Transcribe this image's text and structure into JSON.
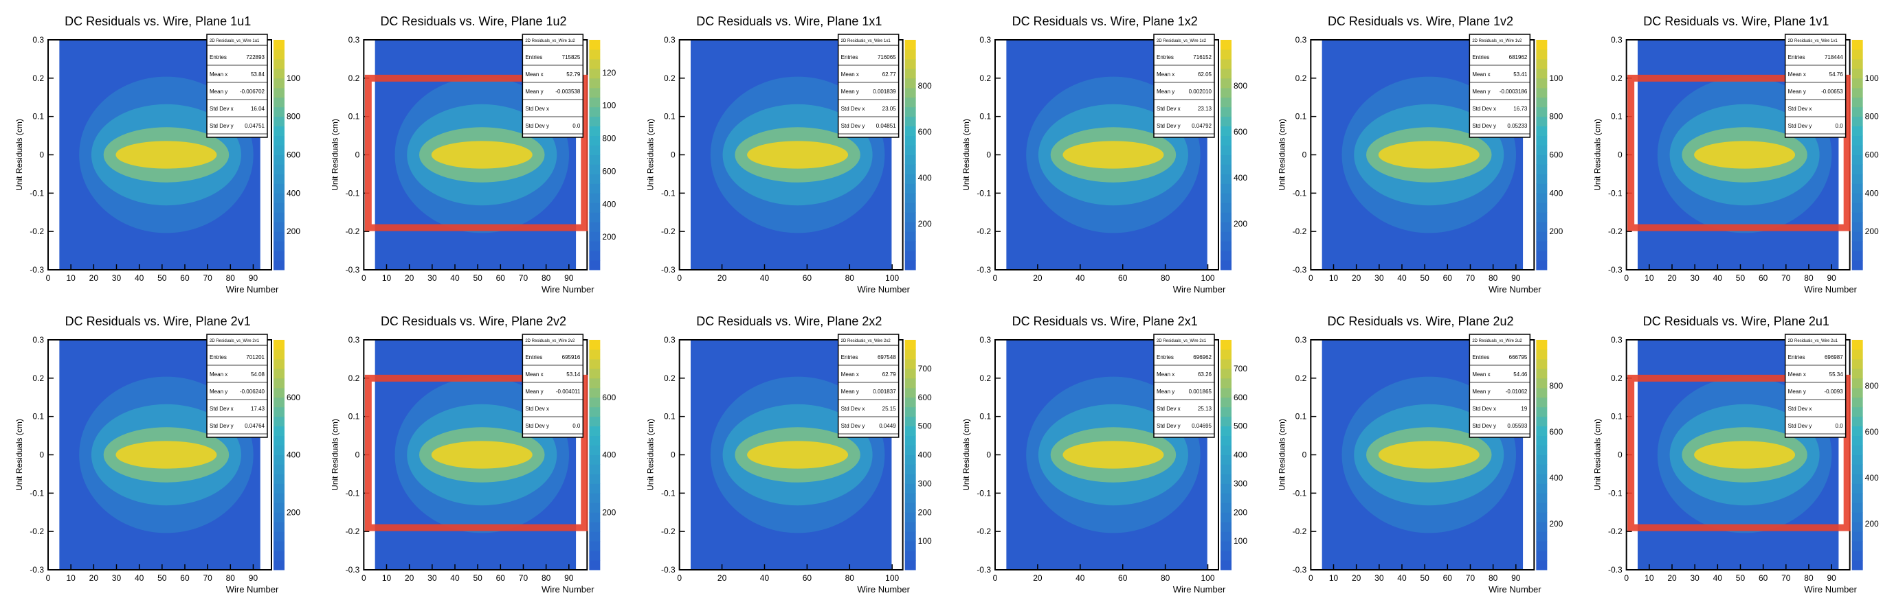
{
  "canvas": {
    "ylabel": "Unit Residuals (cm)",
    "xlabel": "Wire Number",
    "stats_labels": [
      "Entries",
      "Mean x",
      "Mean y",
      "Std Dev x",
      "Std Dev y"
    ]
  },
  "colors": {
    "background": "#ffffff",
    "frame": "#000000",
    "heat_low": "#2a5ccd",
    "heat_mid": "#33b3c7",
    "heat_high": "#f5d31d",
    "overlay": "#e8412c"
  },
  "chart_data": [
    {
      "type": "heatmap",
      "title": "DC Residuals vs. Wire, Plane 1u1",
      "stats_title": "2D Residuals_vs_Wire 1u1",
      "xlabel": "Wire Number",
      "ylabel": "Unit Residuals (cm)",
      "xlim": [
        0,
        98
      ],
      "ylim": [
        -0.3,
        0.3
      ],
      "xticks": [
        0,
        10,
        20,
        30,
        40,
        50,
        60,
        70,
        80,
        90
      ],
      "yticks": [
        -0.3,
        -0.2,
        -0.1,
        0,
        0.1,
        0.2,
        0.3
      ],
      "zticks": [
        "200",
        "400",
        "600",
        "800",
        "100"
      ],
      "stats": [
        "722893",
        "53.84",
        "-0.006702",
        "16.04",
        "0.04751"
      ],
      "overlay": false
    },
    {
      "type": "heatmap",
      "title": "DC Residuals vs. Wire, Plane 1u2",
      "stats_title": "2D Residuals_vs_Wire 1u2",
      "xlabel": "Wire Number",
      "ylabel": "Unit Residuals (cm)",
      "xlim": [
        0,
        98
      ],
      "ylim": [
        -0.3,
        0.3
      ],
      "xticks": [
        0,
        10,
        20,
        30,
        40,
        50,
        60,
        70,
        80,
        90
      ],
      "yticks": [
        -0.3,
        -0.2,
        -0.1,
        0,
        0.1,
        0.2,
        0.3
      ],
      "zticks": [
        "200",
        "400",
        "600",
        "800",
        "100",
        "120"
      ],
      "stats": [
        "715825",
        "52.79",
        "-0.003538",
        "",
        "0.0"
      ],
      "overlay": true
    },
    {
      "type": "heatmap",
      "title": "DC Residuals vs. Wire, Plane 1x1",
      "stats_title": "2D Residuals_vs_Wire 1x1",
      "xlabel": "Wire Number",
      "ylabel": "Unit Residuals (cm)",
      "xlim": [
        0,
        105
      ],
      "ylim": [
        -0.3,
        0.3
      ],
      "xticks": [
        0,
        20,
        40,
        60,
        80,
        100
      ],
      "yticks": [
        -0.3,
        -0.2,
        -0.1,
        0,
        0.1,
        0.2,
        0.3
      ],
      "zticks": [
        "200",
        "400",
        "600",
        "800"
      ],
      "stats": [
        "716065",
        "62.77",
        "0.001839",
        "23.05",
        "0.04851"
      ],
      "overlay": false
    },
    {
      "type": "heatmap",
      "title": "DC Residuals vs. Wire, Plane 1x2",
      "stats_title": "2D Residuals_vs_Wire 1x2",
      "xlabel": "Wire Number",
      "ylabel": "Unit Residuals (cm)",
      "xlim": [
        0,
        105
      ],
      "ylim": [
        -0.3,
        0.3
      ],
      "xticks": [
        0,
        20,
        40,
        60,
        80,
        100
      ],
      "yticks": [
        -0.3,
        -0.2,
        -0.1,
        0,
        0.1,
        0.2,
        0.3
      ],
      "zticks": [
        "200",
        "400",
        "600",
        "800"
      ],
      "stats": [
        "716152",
        "62.05",
        "0.002010",
        "23.13",
        "0.04792"
      ],
      "overlay": false
    },
    {
      "type": "heatmap",
      "title": "DC Residuals vs. Wire, Plane 1v2",
      "stats_title": "2D Residuals_vs_Wire 1v2",
      "xlabel": "Wire Number",
      "ylabel": "Unit Residuals (cm)",
      "xlim": [
        0,
        98
      ],
      "ylim": [
        -0.3,
        0.3
      ],
      "xticks": [
        0,
        10,
        20,
        30,
        40,
        50,
        60,
        70,
        80,
        90
      ],
      "yticks": [
        -0.3,
        -0.2,
        -0.1,
        0,
        0.1,
        0.2,
        0.3
      ],
      "zticks": [
        "200",
        "400",
        "600",
        "800",
        "100"
      ],
      "stats": [
        "681962",
        "53.41",
        "-0.0003186",
        "16.73",
        "0.05233"
      ],
      "overlay": false
    },
    {
      "type": "heatmap",
      "title": "DC Residuals vs. Wire, Plane 1v1",
      "stats_title": "2D Residuals_vs_Wire 1v1",
      "xlabel": "Wire Number",
      "ylabel": "Unit Residuals (cm)",
      "xlim": [
        0,
        98
      ],
      "ylim": [
        -0.3,
        0.3
      ],
      "xticks": [
        0,
        10,
        20,
        30,
        40,
        50,
        60,
        70,
        80,
        90
      ],
      "yticks": [
        -0.3,
        -0.2,
        -0.1,
        0,
        0.1,
        0.2,
        0.3
      ],
      "zticks": [
        "200",
        "400",
        "600",
        "800",
        "100"
      ],
      "stats": [
        "718444",
        "54.76",
        "-0.00653",
        "",
        "0.0"
      ],
      "overlay": true
    },
    {
      "type": "heatmap",
      "title": "DC Residuals vs. Wire, Plane 2v1",
      "stats_title": "2D Residuals_vs_Wire 2v1",
      "xlabel": "Wire Number",
      "ylabel": "Unit Residuals (cm)",
      "xlim": [
        0,
        98
      ],
      "ylim": [
        -0.3,
        0.3
      ],
      "xticks": [
        0,
        10,
        20,
        30,
        40,
        50,
        60,
        70,
        80,
        90
      ],
      "yticks": [
        -0.3,
        -0.2,
        -0.1,
        0,
        0.1,
        0.2,
        0.3
      ],
      "zticks": [
        "200",
        "400",
        "600"
      ],
      "stats": [
        "701201",
        "54.08",
        "-0.006240",
        "17.43",
        "0.04764"
      ],
      "overlay": false
    },
    {
      "type": "heatmap",
      "title": "DC Residuals vs. Wire, Plane 2v2",
      "stats_title": "2D Residuals_vs_Wire 2v2",
      "xlabel": "Wire Number",
      "ylabel": "Unit Residuals (cm)",
      "xlim": [
        0,
        98
      ],
      "ylim": [
        -0.3,
        0.3
      ],
      "xticks": [
        0,
        10,
        20,
        30,
        40,
        50,
        60,
        70,
        80,
        90
      ],
      "yticks": [
        -0.3,
        -0.2,
        -0.1,
        0,
        0.1,
        0.2,
        0.3
      ],
      "zticks": [
        "200",
        "400",
        "600"
      ],
      "stats": [
        "695916",
        "53.14",
        "-0.004011",
        "",
        "0.0"
      ],
      "overlay": true
    },
    {
      "type": "heatmap",
      "title": "DC Residuals vs. Wire, Plane 2x2",
      "stats_title": "2D Residuals_vs_Wire 2x2",
      "xlabel": "Wire Number",
      "ylabel": "Unit Residuals (cm)",
      "xlim": [
        0,
        105
      ],
      "ylim": [
        -0.3,
        0.3
      ],
      "xticks": [
        0,
        20,
        40,
        60,
        80,
        100
      ],
      "yticks": [
        -0.3,
        -0.2,
        -0.1,
        0,
        0.1,
        0.2,
        0.3
      ],
      "zticks": [
        "100",
        "200",
        "300",
        "400",
        "500",
        "600",
        "700"
      ],
      "stats": [
        "697548",
        "62.79",
        "0.001837",
        "25.15",
        "0.0449"
      ],
      "overlay": false
    },
    {
      "type": "heatmap",
      "title": "DC Residuals vs. Wire, Plane 2x1",
      "stats_title": "2D Residuals_vs_Wire 2x1",
      "xlabel": "Wire Number",
      "ylabel": "Unit Residuals (cm)",
      "xlim": [
        0,
        105
      ],
      "ylim": [
        -0.3,
        0.3
      ],
      "xticks": [
        0,
        20,
        40,
        60,
        80,
        100
      ],
      "yticks": [
        -0.3,
        -0.2,
        -0.1,
        0,
        0.1,
        0.2,
        0.3
      ],
      "zticks": [
        "100",
        "200",
        "300",
        "400",
        "500",
        "600",
        "700"
      ],
      "stats": [
        "696962",
        "63.26",
        "0.001865",
        "25.13",
        "0.04695"
      ],
      "overlay": false
    },
    {
      "type": "heatmap",
      "title": "DC Residuals vs. Wire, Plane 2u2",
      "stats_title": "2D Residuals_vs_Wire 2u2",
      "xlabel": "Wire Number",
      "ylabel": "Unit Residuals (cm)",
      "xlim": [
        0,
        98
      ],
      "ylim": [
        -0.3,
        0.3
      ],
      "xticks": [
        0,
        10,
        20,
        30,
        40,
        50,
        60,
        70,
        80,
        90
      ],
      "yticks": [
        -0.3,
        -0.2,
        -0.1,
        0,
        0.1,
        0.2,
        0.3
      ],
      "zticks": [
        "200",
        "400",
        "600",
        "800"
      ],
      "stats": [
        "666795",
        "54.46",
        "-0.01062",
        "19",
        "0.05593"
      ],
      "overlay": false
    },
    {
      "type": "heatmap",
      "title": "DC Residuals vs. Wire, Plane 2u1",
      "stats_title": "2D Residuals_vs_Wire 2u1",
      "xlabel": "Wire Number",
      "ylabel": "Unit Residuals (cm)",
      "xlim": [
        0,
        98
      ],
      "ylim": [
        -0.3,
        0.3
      ],
      "xticks": [
        0,
        10,
        20,
        30,
        40,
        50,
        60,
        70,
        80,
        90
      ],
      "yticks": [
        -0.3,
        -0.2,
        -0.1,
        0,
        0.1,
        0.2,
        0.3
      ],
      "zticks": [
        "200",
        "400",
        "600",
        "800"
      ],
      "stats": [
        "696987",
        "55.34",
        "-0.0093",
        "",
        "0.0"
      ],
      "overlay": true
    }
  ]
}
